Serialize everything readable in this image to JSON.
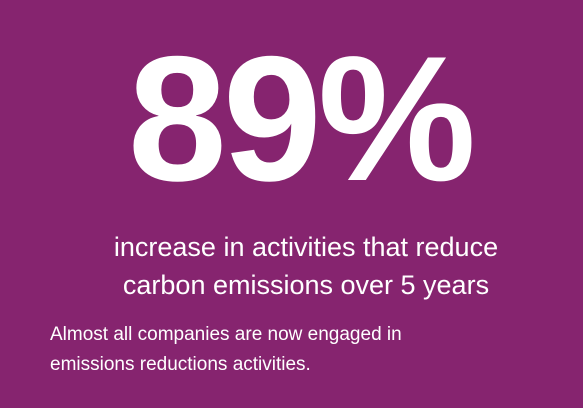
{
  "stat": "89%",
  "headline": [
    "increase in activities that reduce",
    "carbon emissions over 5 years"
  ],
  "body": [
    "Almost all companies are now engaged in",
    "emissions reductions activities."
  ]
}
